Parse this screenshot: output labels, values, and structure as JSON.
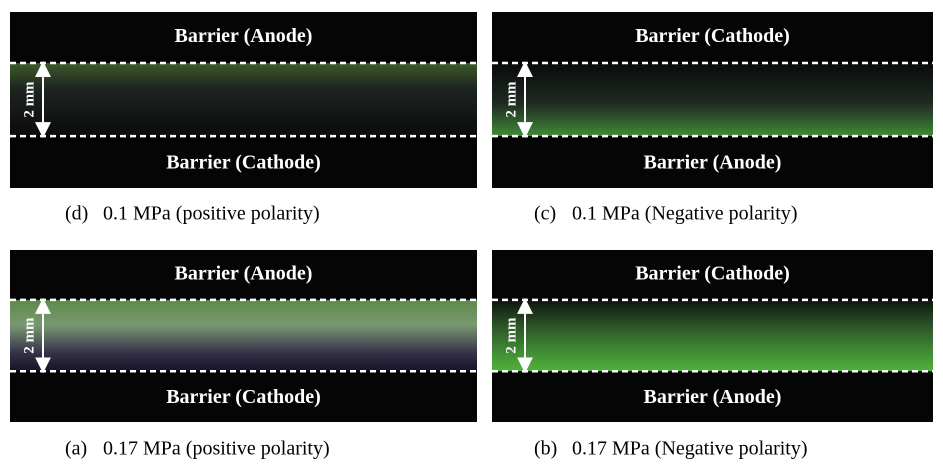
{
  "panels": [
    {
      "top_label": "Barrier (Anode)",
      "bottom_label": "Barrier (Cathode)",
      "gap_label": "2 mm",
      "letter": "(d)",
      "caption": "0.1 MPa (positive polarity)"
    },
    {
      "top_label": "Barrier (Cathode)",
      "bottom_label": "Barrier (Anode)",
      "gap_label": "2 mm",
      "letter": "(c)",
      "caption": "0.1 MPa (Negative polarity)"
    },
    {
      "top_label": "Barrier (Anode)",
      "bottom_label": "Barrier (Cathode)",
      "gap_label": "2 mm",
      "letter": "(a)",
      "caption": "0.17 MPa (positive polarity)"
    },
    {
      "top_label": "Barrier (Cathode)",
      "bottom_label": "Barrier (Anode)",
      "gap_label": "2 mm",
      "letter": "(b)",
      "caption": "0.17 MPa (Negative polarity)"
    }
  ]
}
